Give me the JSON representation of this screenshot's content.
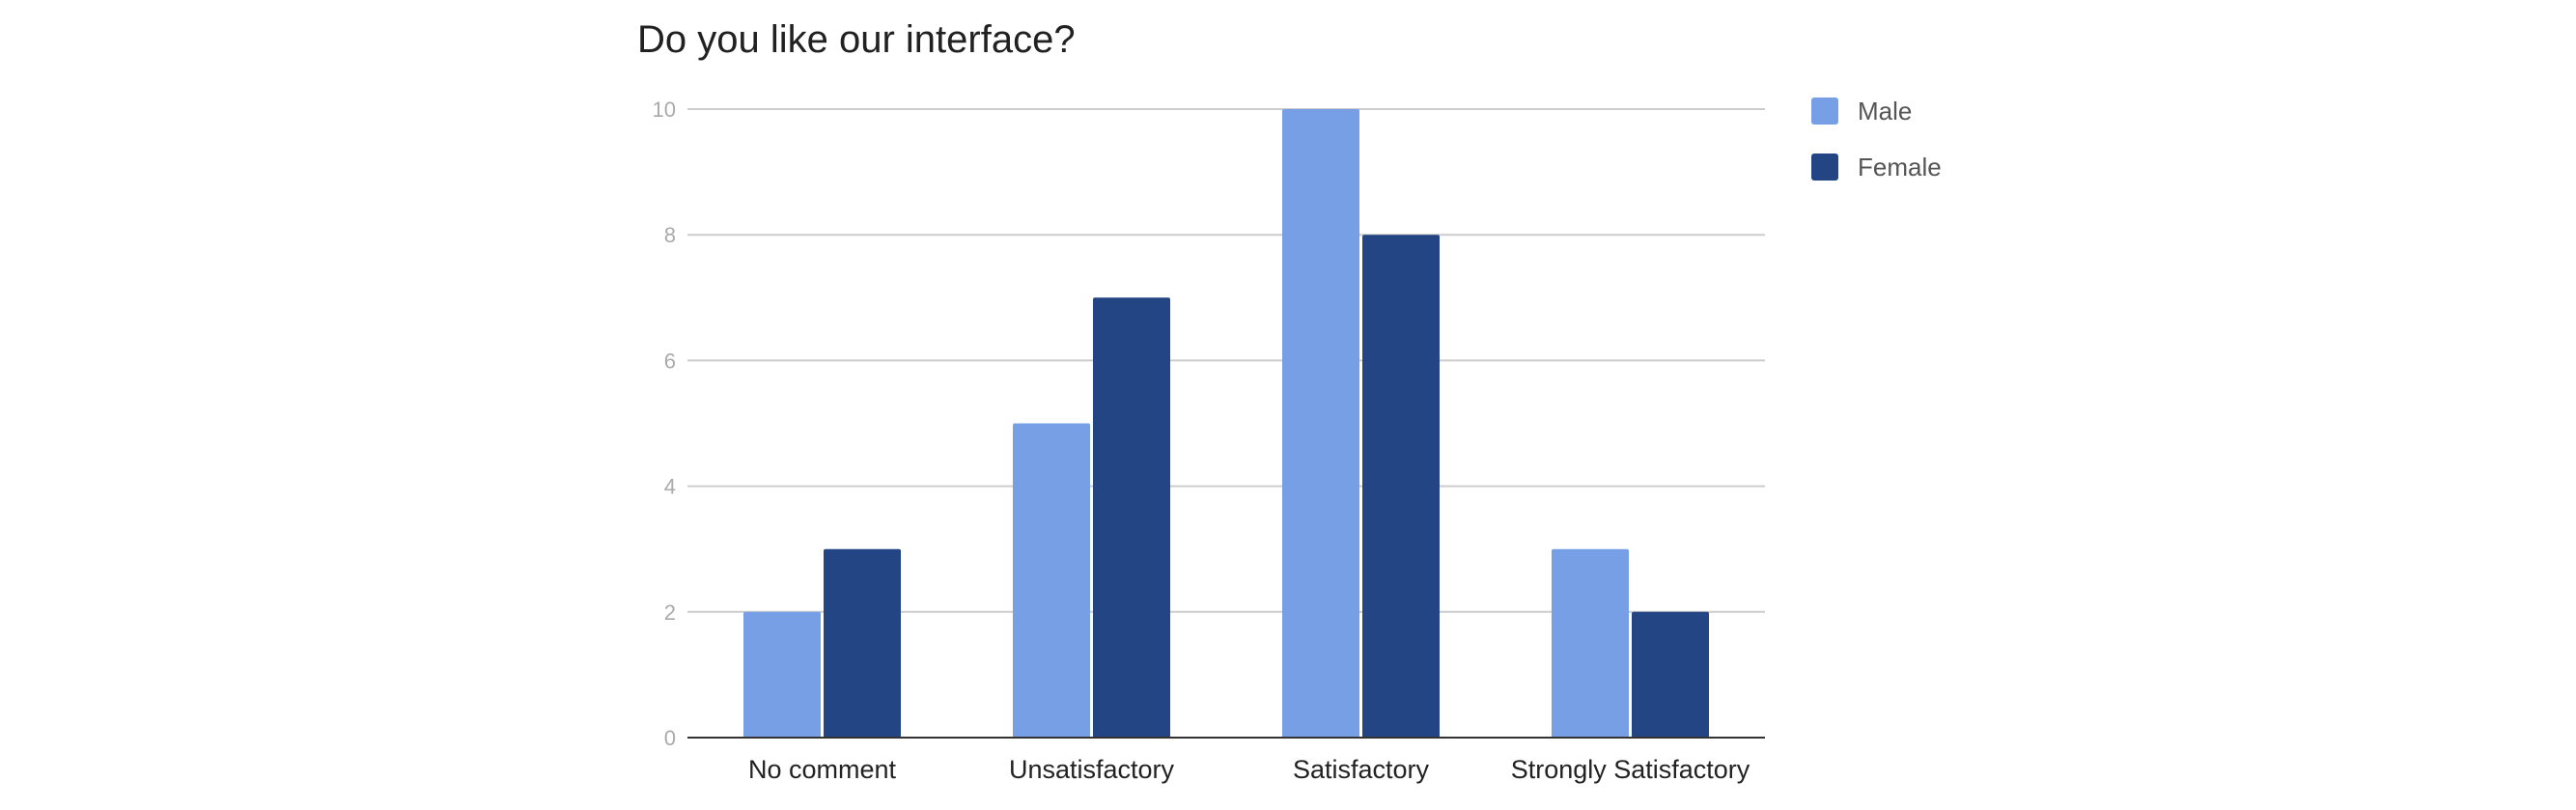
{
  "chart_data": {
    "type": "bar",
    "title": "Do you like our interface?",
    "xlabel": "",
    "ylabel": "",
    "categories": [
      "No comment",
      "Unsatisfactory",
      "Satisfactory",
      "Strongly Satisfactory"
    ],
    "series": [
      {
        "name": "Male",
        "values": [
          2,
          5,
          10,
          3
        ],
        "color": "#779fe5"
      },
      {
        "name": "Female",
        "values": [
          3,
          7,
          8,
          2
        ],
        "color": "#234583"
      }
    ],
    "ylim": [
      0,
      10
    ],
    "yticks": [
      0,
      2,
      4,
      6,
      8,
      10
    ],
    "grid": true,
    "legend_position": "right"
  }
}
